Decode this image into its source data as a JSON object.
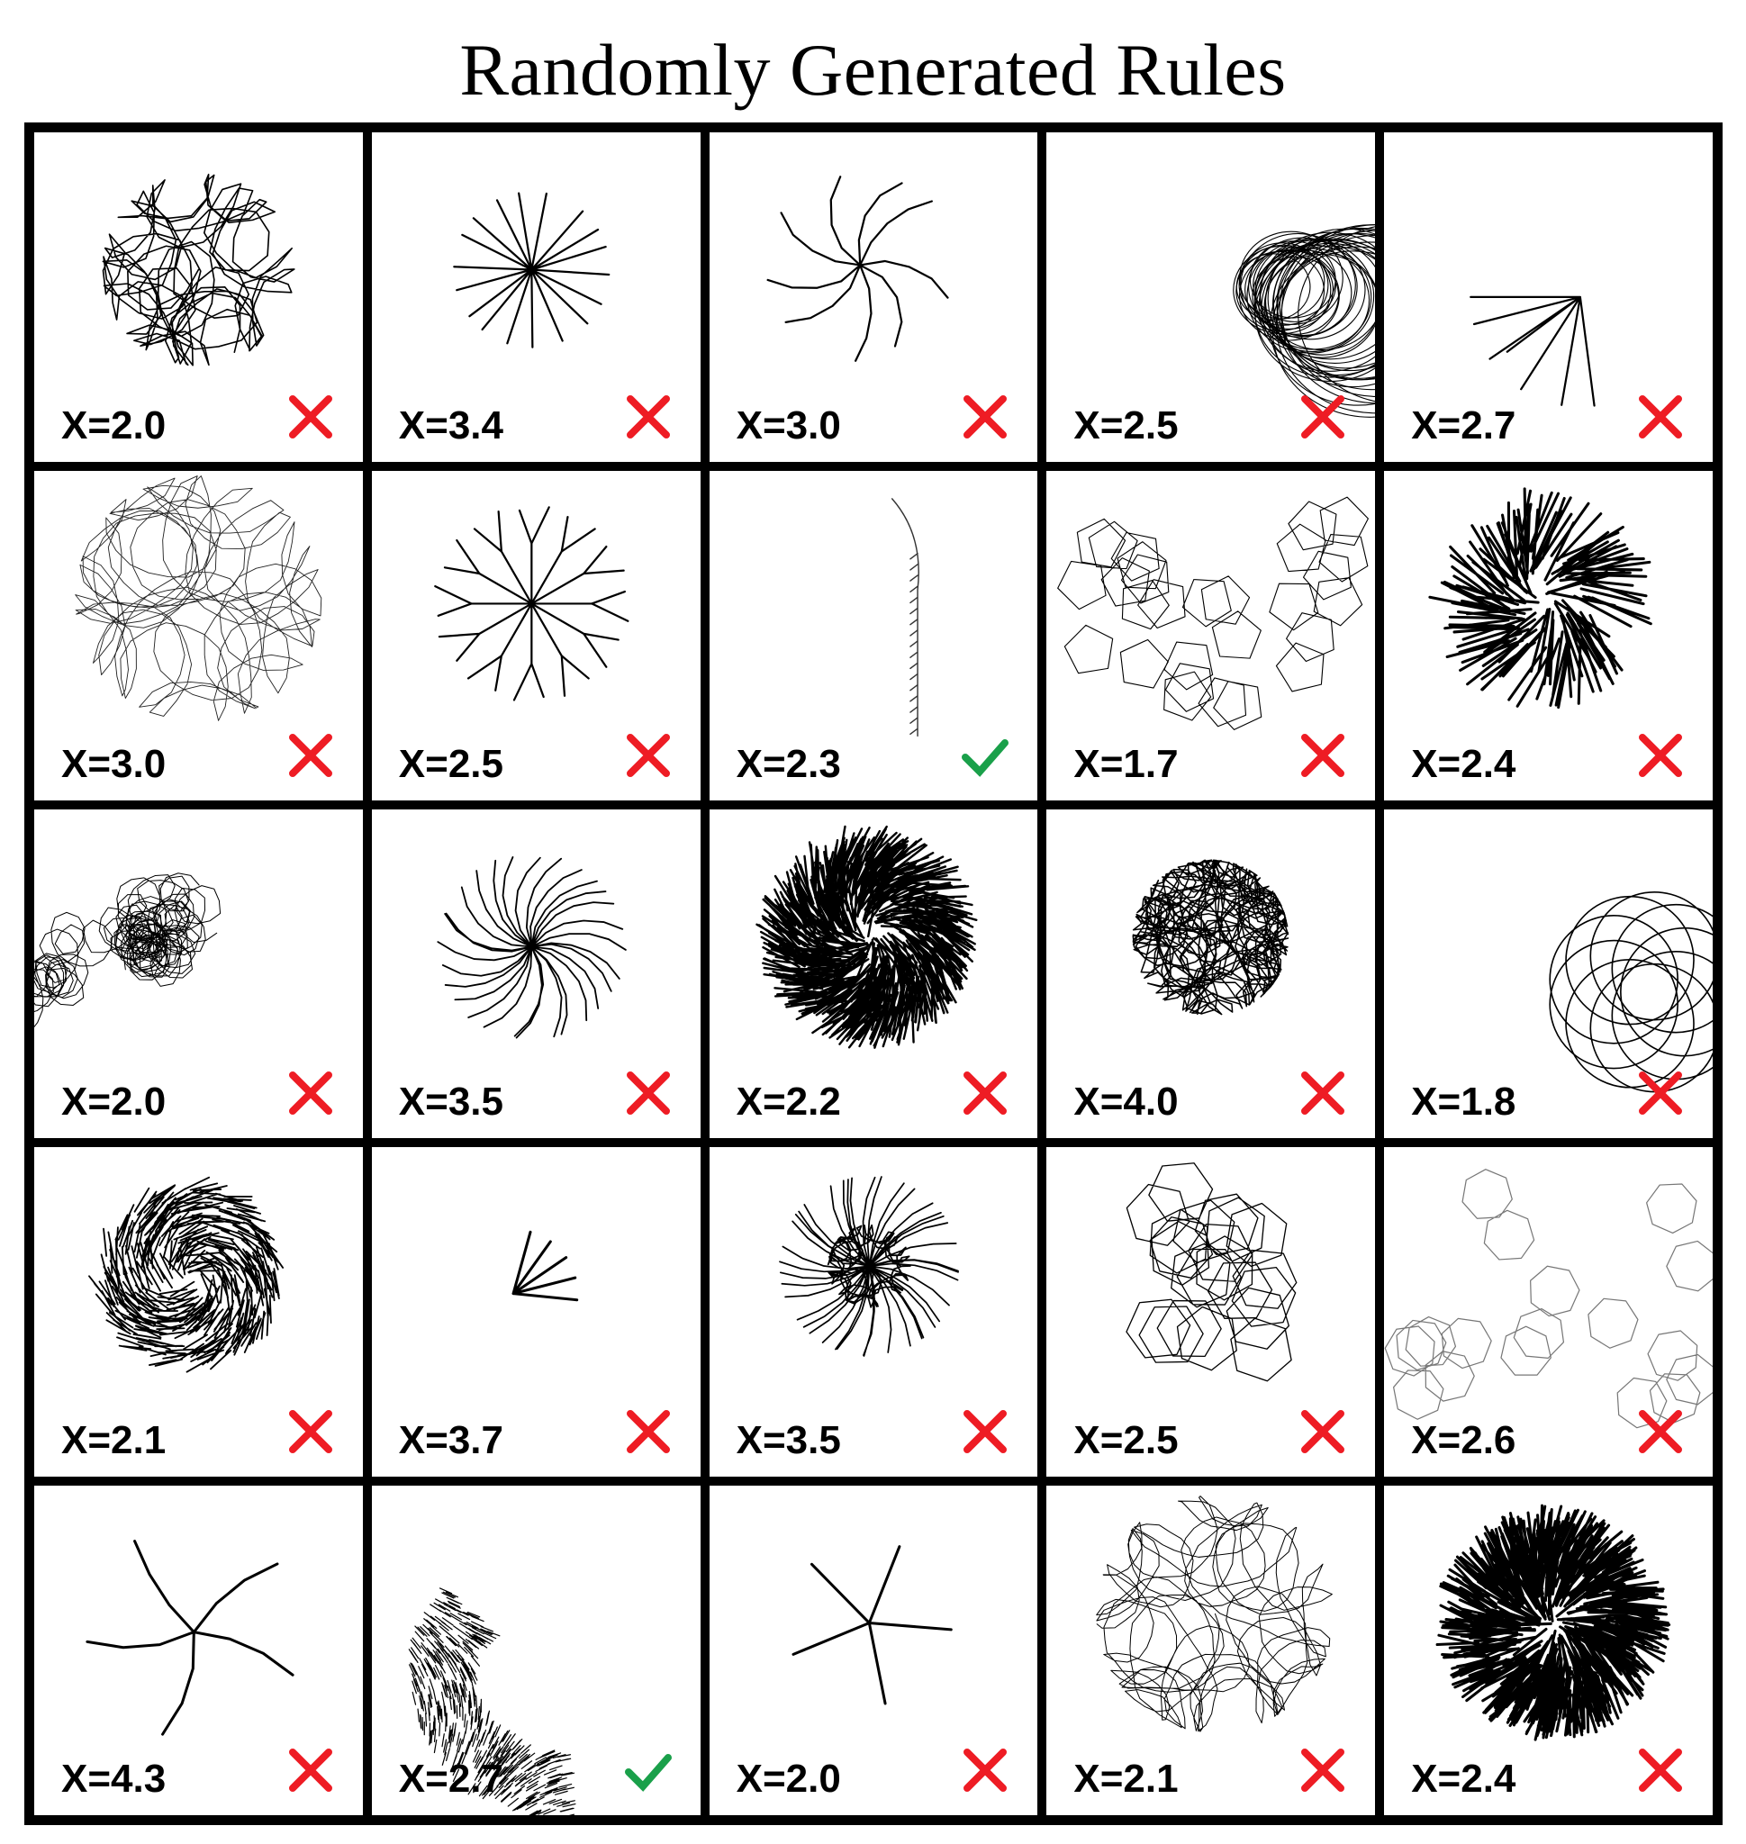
{
  "title": "Randomly Generated Rules",
  "colors": {
    "cross": "#ee1c24",
    "check": "#1aa04a",
    "ink": "#000000"
  },
  "cells": [
    {
      "label": "X=2.0",
      "result": "cross",
      "pattern": "tangle"
    },
    {
      "label": "X=3.4",
      "result": "cross",
      "pattern": "star"
    },
    {
      "label": "X=3.0",
      "result": "cross",
      "pattern": "bent-star"
    },
    {
      "label": "X=2.5",
      "result": "cross",
      "pattern": "rings"
    },
    {
      "label": "X=2.7",
      "result": "cross",
      "pattern": "fan"
    },
    {
      "label": "X=3.0",
      "result": "cross",
      "pattern": "rings-thin"
    },
    {
      "label": "X=2.5",
      "result": "cross",
      "pattern": "branched-star"
    },
    {
      "label": "X=2.3",
      "result": "check",
      "pattern": "frond"
    },
    {
      "label": "X=1.7",
      "result": "cross",
      "pattern": "pentagons"
    },
    {
      "label": "X=2.4",
      "result": "cross",
      "pattern": "dense-star"
    },
    {
      "label": "X=2.0",
      "result": "cross",
      "pattern": "chain"
    },
    {
      "label": "X=3.5",
      "result": "cross",
      "pattern": "branched-burst"
    },
    {
      "label": "X=2.2",
      "result": "cross",
      "pattern": "blob"
    },
    {
      "label": "X=4.0",
      "result": "cross",
      "pattern": "blob-tangle"
    },
    {
      "label": "X=1.8",
      "result": "cross",
      "pattern": "loops"
    },
    {
      "label": "X=2.1",
      "result": "cross",
      "pattern": "spiral-comb"
    },
    {
      "label": "X=3.7",
      "result": "cross",
      "pattern": "small-fan"
    },
    {
      "label": "X=3.5",
      "result": "cross",
      "pattern": "urchin"
    },
    {
      "label": "X=2.5",
      "result": "cross",
      "pattern": "hex"
    },
    {
      "label": "X=2.6",
      "result": "cross",
      "pattern": "gray-chain"
    },
    {
      "label": "X=4.3",
      "result": "cross",
      "pattern": "sparse"
    },
    {
      "label": "X=2.7",
      "result": "check",
      "pattern": "crescent"
    },
    {
      "label": "X=2.0",
      "result": "cross",
      "pattern": "five-star"
    },
    {
      "label": "X=2.1",
      "result": "cross",
      "pattern": "bush-rings"
    },
    {
      "label": "X=2.4",
      "result": "cross",
      "pattern": "dense-blob"
    }
  ]
}
